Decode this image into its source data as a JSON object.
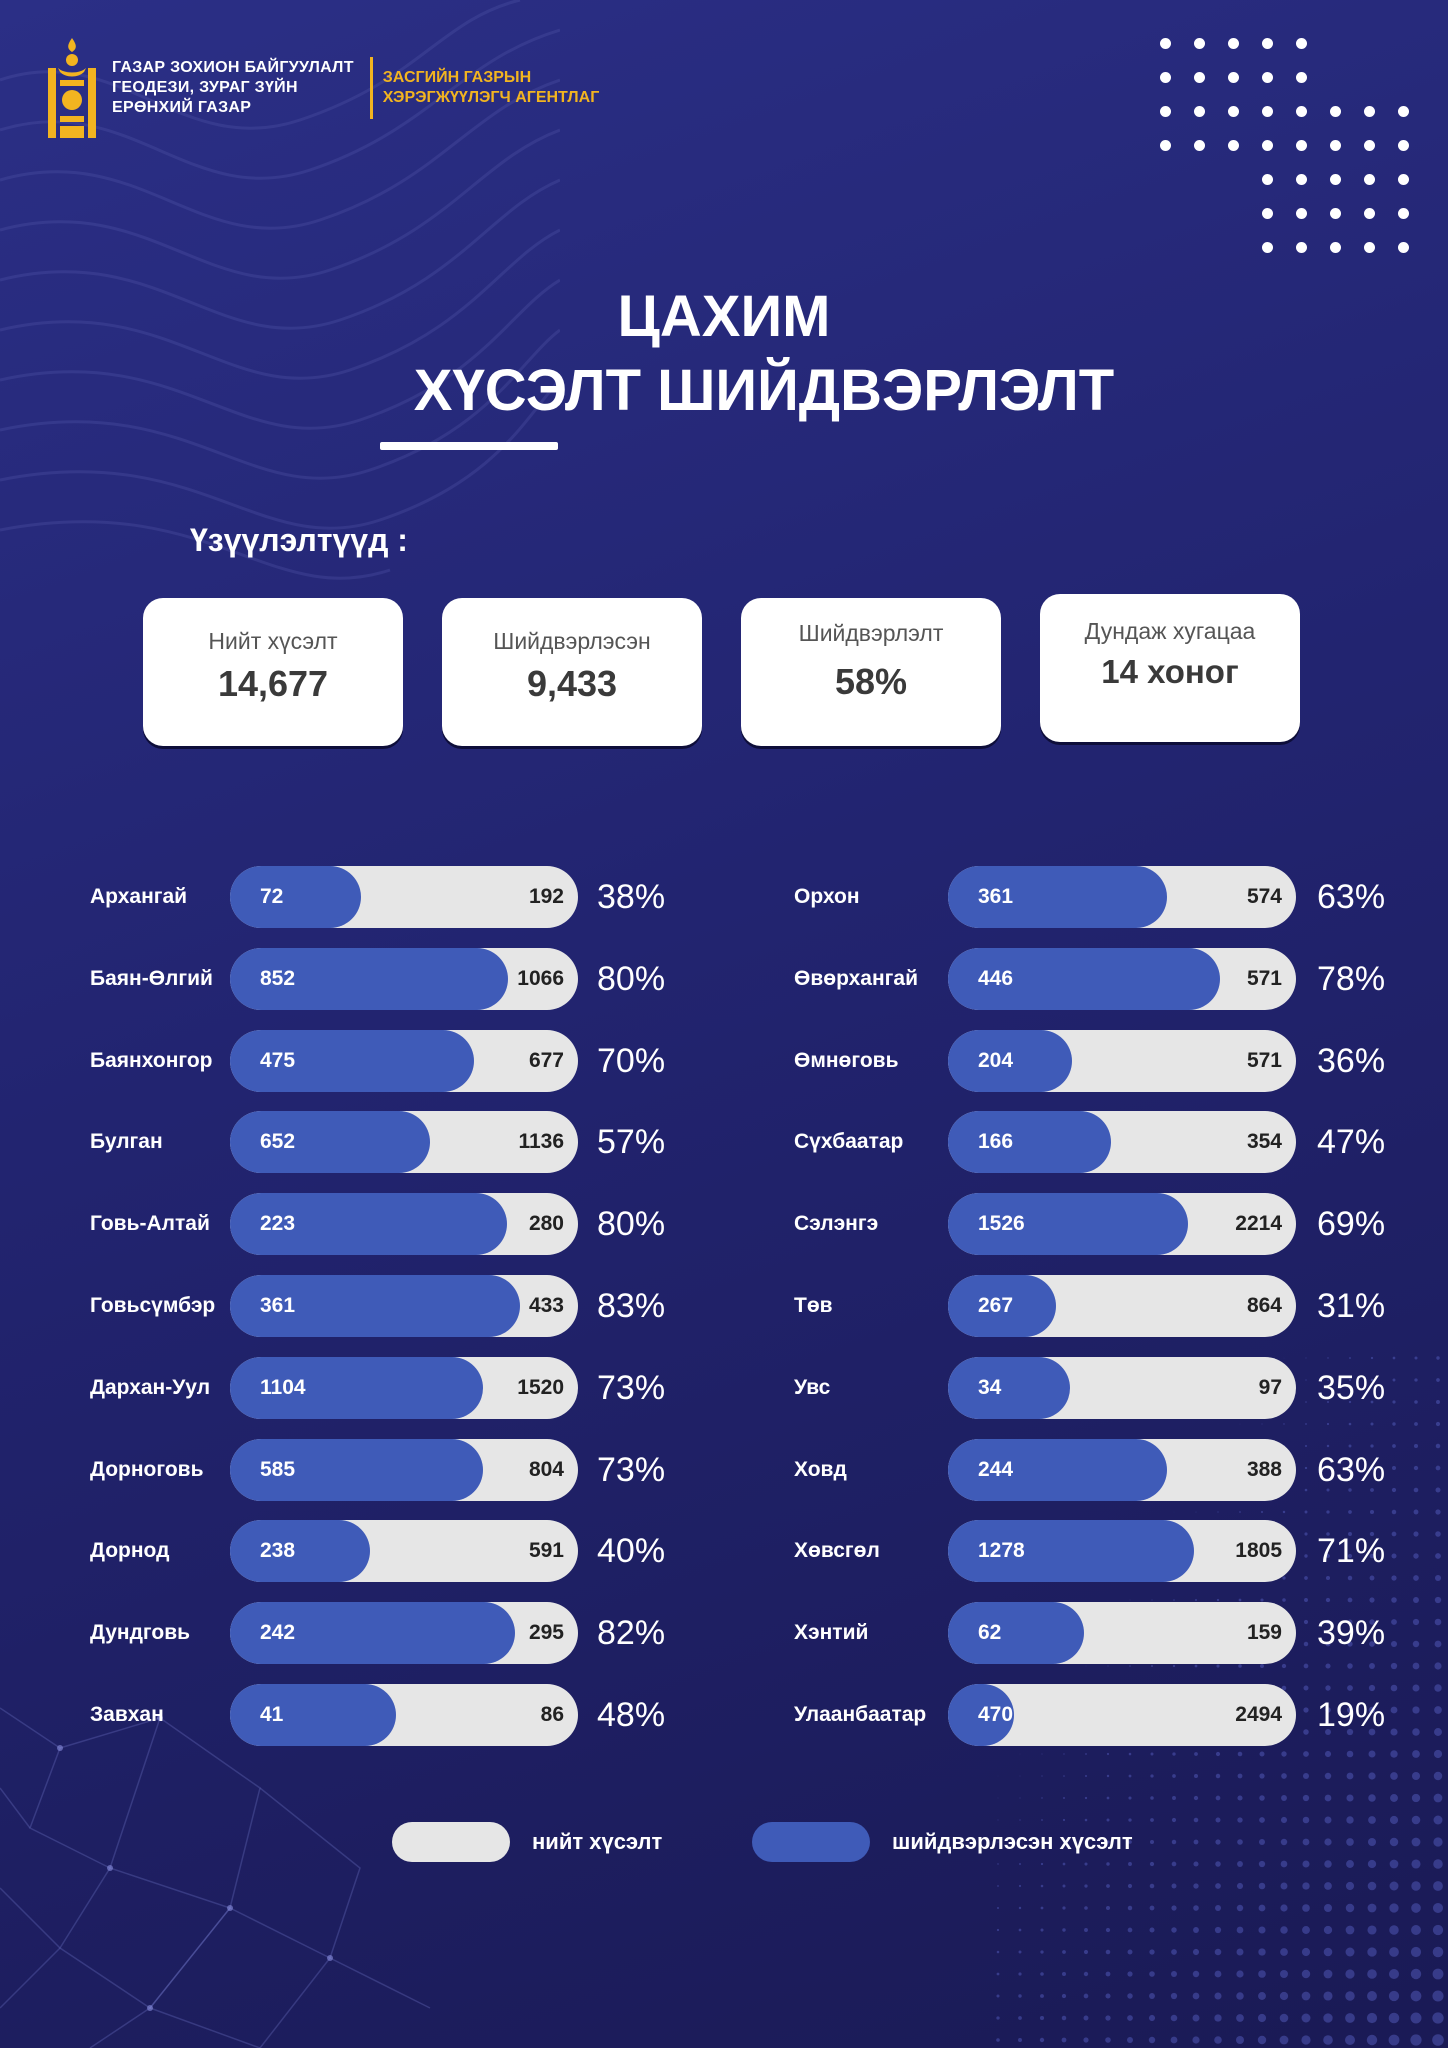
{
  "header": {
    "org_line1": "ГАЗАР ЗОХИОН БАЙГУУЛАЛТ",
    "org_line2": "ГЕОДЕЗИ, ЗУРАГ ЗҮЙН",
    "org_line3": "ЕРӨНХИЙ ГАЗАР",
    "agency_line1": "ЗАСГИЙН ГАЗРЫН",
    "agency_line2": "ХЭРЭГЖҮҮЛЭГЧ АГЕНТЛАГ",
    "emblem_icon": "soyombo-emblem-icon"
  },
  "title": {
    "line1": "ЦАХИМ",
    "line2": "ХҮСЭЛТ ШИЙДВЭРЛЭЛТ"
  },
  "indicators": {
    "label": "Үзүүлэлтүүд :",
    "cards": [
      {
        "label": "Нийт хүсэлт",
        "value": "14,677"
      },
      {
        "label": "Шийдвэрлэсэн",
        "value": "9,433"
      },
      {
        "label": "Шийдвэрлэлт",
        "value": "58%"
      },
      {
        "label": "Дундаж хугацаа",
        "value": "14 хоног"
      }
    ]
  },
  "colors": {
    "total_bar": "#e6e6e6",
    "solved_bar": "#3f5bb8",
    "accent": "#f2b420",
    "background": "#222470"
  },
  "chart_data": {
    "type": "bar",
    "series": [
      {
        "name": "нийт хүсэлт",
        "key": "total"
      },
      {
        "name": "шийдвэрлэсэн хүсэлт",
        "key": "solved"
      }
    ],
    "left": [
      {
        "name": "Архангай",
        "solved": 72,
        "total": 192,
        "pct": "38%"
      },
      {
        "name": "Баян-Өлгий",
        "solved": 852,
        "total": 1066,
        "pct": "80%"
      },
      {
        "name": "Баянхонгор",
        "solved": 475,
        "total": 677,
        "pct": "70%"
      },
      {
        "name": "Булган",
        "solved": 652,
        "total": 1136,
        "pct": "57%"
      },
      {
        "name": "Говь-Алтай",
        "solved": 223,
        "total": 280,
        "pct": "80%"
      },
      {
        "name": "Говьсүмбэр",
        "solved": 361,
        "total": 433,
        "pct": "83%"
      },
      {
        "name": "Дархан-Уул",
        "solved": 1104,
        "total": 1520,
        "pct": "73%"
      },
      {
        "name": "Дорноговь",
        "solved": 585,
        "total": 804,
        "pct": "73%"
      },
      {
        "name": "Дорнод",
        "solved": 238,
        "total": 591,
        "pct": "40%"
      },
      {
        "name": "Дундговь",
        "solved": 242,
        "total": 295,
        "pct": "82%"
      },
      {
        "name": "Завхан",
        "solved": 41,
        "total": 86,
        "pct": "48%"
      }
    ],
    "right": [
      {
        "name": "Орхон",
        "solved": 361,
        "total": 574,
        "pct": "63%"
      },
      {
        "name": "Өвөрхангай",
        "solved": 446,
        "total": 571,
        "pct": "78%"
      },
      {
        "name": "Өмнөговь",
        "solved": 204,
        "total": 571,
        "pct": "36%"
      },
      {
        "name": "Сүхбаатар",
        "solved": 166,
        "total": 354,
        "pct": "47%"
      },
      {
        "name": "Сэлэнгэ",
        "solved": 1526,
        "total": 2214,
        "pct": "69%"
      },
      {
        "name": "Төв",
        "solved": 267,
        "total": 864,
        "pct": "31%"
      },
      {
        "name": "Увс",
        "solved": 34,
        "total": 97,
        "pct": "35%"
      },
      {
        "name": "Ховд",
        "solved": 244,
        "total": 388,
        "pct": "63%"
      },
      {
        "name": "Хөвсгөл",
        "solved": 1278,
        "total": 1805,
        "pct": "71%"
      },
      {
        "name": "Хэнтий",
        "solved": 62,
        "total": 159,
        "pct": "39%"
      },
      {
        "name": "Улаанбаатар",
        "solved": 470,
        "total": 2494,
        "pct": "19%"
      }
    ]
  },
  "legend": {
    "total_label": "нийт хүсэлт",
    "solved_label": "шийдвэрлэсэн хүсэлт"
  }
}
